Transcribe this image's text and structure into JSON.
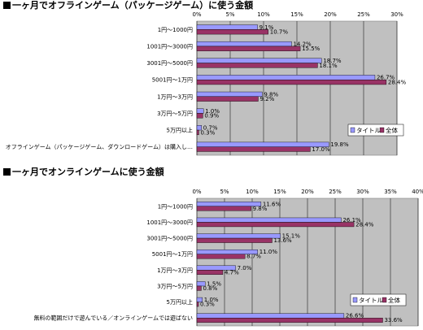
{
  "chart_data": [
    {
      "type": "bar",
      "orientation": "horizontal",
      "title": "一ヶ月でオフラインゲーム（パッケージゲーム）に使う金額",
      "categories": [
        "1円～1000円",
        "1001円～3000円",
        "3001円～5000円",
        "5001円～1万円",
        "1万円～3万円",
        "3万円～5万円",
        "5万円以上",
        "オフラインゲーム（パッケージゲーム、ダウンロードゲーム）は購入し…"
      ],
      "series": [
        {
          "name": "タイトル",
          "color": "#9999ff",
          "values": [
            9.1,
            14.2,
            18.7,
            26.7,
            9.8,
            1.0,
            0.7,
            19.8
          ]
        },
        {
          "name": "全体",
          "color": "#993366",
          "values": [
            10.7,
            15.5,
            18.1,
            28.4,
            9.2,
            0.9,
            0.3,
            17.0
          ]
        }
      ],
      "value_labels": [
        [
          "9.1%",
          "14.2%",
          "18.7%",
          "26.7%",
          "9.8%",
          "1.0%",
          "0.7%",
          "19.8%"
        ],
        [
          "10.7%",
          "15.5%",
          "18.1%",
          "28.4%",
          "9.2%",
          "0.9%",
          "0.3%",
          "17.0%"
        ]
      ],
      "xlim": [
        0,
        30
      ],
      "ticks": [
        "0%",
        "5%",
        "10%",
        "15%",
        "20%",
        "25%",
        "30%"
      ],
      "tick_values": [
        0,
        5,
        10,
        15,
        20,
        25,
        30
      ],
      "grid": true,
      "legend": "right",
      "plot_bg": "#c0c0c0"
    },
    {
      "type": "bar",
      "orientation": "horizontal",
      "title": "一ヶ月でオンラインゲームに使う金額",
      "categories": [
        "1円～1000円",
        "1001円～3000円",
        "3001円～5000円",
        "5001円～1万円",
        "1万円～3万円",
        "3万円～5万円",
        "5万円以上",
        "無料の範囲だけで遊んでいる／オンラインゲームでは遊ばない"
      ],
      "series": [
        {
          "name": "タイトル",
          "color": "#9999ff",
          "values": [
            11.6,
            26.1,
            15.1,
            11.0,
            7.0,
            1.5,
            1.0,
            26.6
          ]
        },
        {
          "name": "全体",
          "color": "#993366",
          "values": [
            9.8,
            28.4,
            13.6,
            8.7,
            4.7,
            0.8,
            0.3,
            33.6
          ]
        }
      ],
      "value_labels": [
        [
          "11.6%",
          "26.1%",
          "15.1%",
          "11.0%",
          "7.0%",
          "1.5%",
          "1.0%",
          "26.6%"
        ],
        [
          "9.8%",
          "28.4%",
          "13.6%",
          "8.7%",
          "4.7%",
          "0.8%",
          "0.3%",
          "33.6%"
        ]
      ],
      "xlim": [
        0,
        40
      ],
      "ticks": [
        "0%",
        "5%",
        "10%",
        "15%",
        "20%",
        "25%",
        "30%",
        "35%",
        "40%"
      ],
      "tick_values": [
        0,
        5,
        10,
        15,
        20,
        25,
        30,
        35,
        40
      ],
      "grid": true,
      "legend": "right",
      "plot_bg": "#c0c0c0"
    }
  ]
}
